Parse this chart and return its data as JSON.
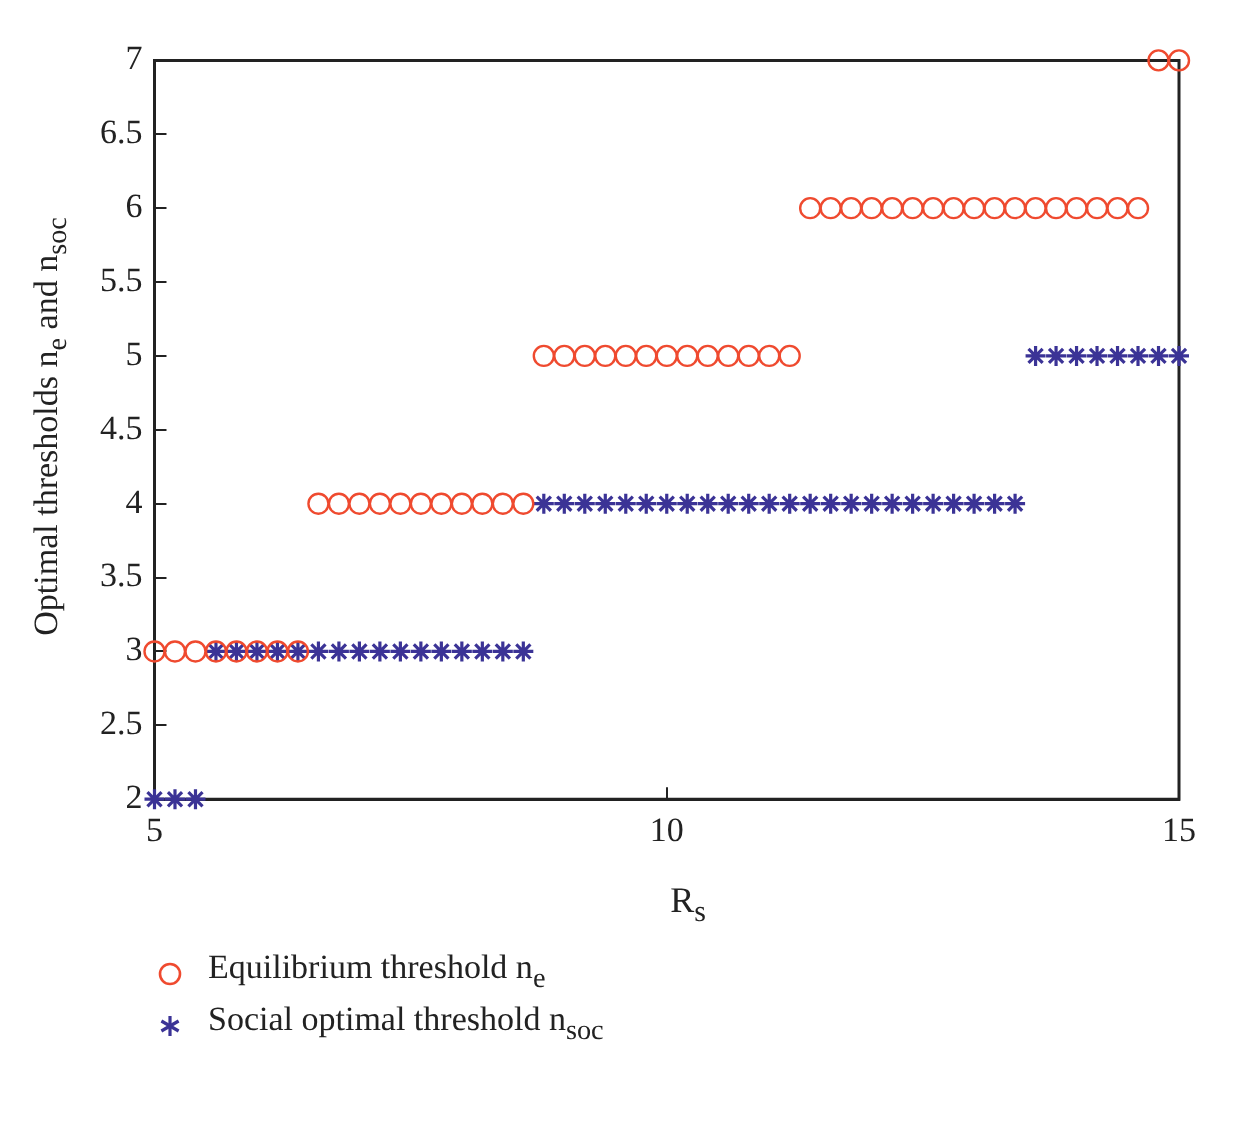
{
  "chart_data": {
    "type": "scatter",
    "xlabel": "R$_{s}$",
    "ylabel": "Optimal thresholds n$_{e}$ and n$_{soc}$",
    "x": [
      5,
      5.2,
      5.4,
      5.6,
      5.8,
      6,
      6.2,
      6.4,
      6.6,
      6.8,
      7,
      7.2,
      7.4,
      7.6,
      7.8,
      8,
      8.2,
      8.4,
      8.6,
      8.8,
      9,
      9.2,
      9.4,
      9.6,
      9.8,
      10,
      10.2,
      10.4,
      10.6,
      10.8,
      11,
      11.2,
      11.4,
      11.6,
      11.8,
      12,
      12.2,
      12.4,
      12.6,
      12.8,
      13,
      13.2,
      13.4,
      13.6,
      13.8,
      14,
      14.2,
      14.4,
      14.6,
      14.8,
      15
    ],
    "series": [
      {
        "name": "Equilibrium threshold n$_{e}$",
        "color": "#ef4a2f",
        "marker": "circle",
        "values": [
          3,
          3,
          3,
          3,
          3,
          3,
          3,
          3,
          4,
          4,
          4,
          4,
          4,
          4,
          4,
          4,
          4,
          4,
          4,
          5,
          5,
          5,
          5,
          5,
          5,
          5,
          5,
          5,
          5,
          5,
          5,
          5,
          6,
          6,
          6,
          6,
          6,
          6,
          6,
          6,
          6,
          6,
          6,
          6,
          6,
          6,
          6,
          6,
          6,
          7,
          7
        ]
      },
      {
        "name": "Social optimal threshold n$_{soc}$",
        "color": "#3b3396",
        "marker": "cross",
        "values": [
          2,
          2,
          2,
          3,
          3,
          3,
          3,
          3,
          3,
          3,
          3,
          3,
          3,
          3,
          3,
          3,
          3,
          3,
          3,
          4,
          4,
          4,
          4,
          4,
          4,
          4,
          4,
          4,
          4,
          4,
          4,
          4,
          4,
          4,
          4,
          4,
          4,
          4,
          4,
          4,
          4,
          4,
          4,
          5,
          5,
          5,
          5,
          5,
          5,
          5,
          5
        ]
      }
    ],
    "xlim": [
      5,
      15
    ],
    "xticks": [
      5,
      10,
      15
    ],
    "ylim": [
      2,
      7
    ],
    "yticks": [
      2,
      2.5,
      3,
      3.5,
      4,
      4.5,
      5,
      5.5,
      6,
      6.5,
      7
    ],
    "grid": false,
    "legend": "bottom"
  }
}
